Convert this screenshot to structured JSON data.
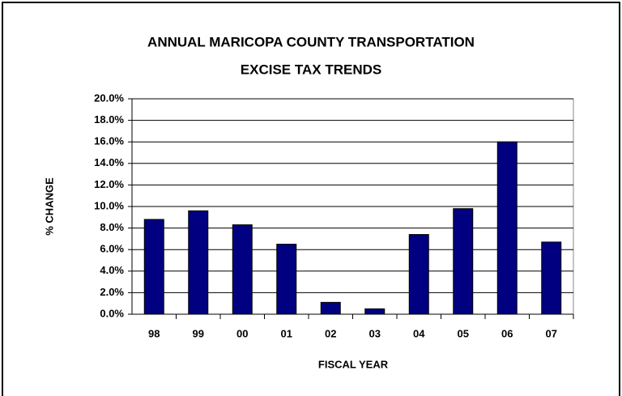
{
  "chart_data": {
    "type": "bar",
    "title": [
      "ANNUAL MARICOPA COUNTY TRANSPORTATION",
      "EXCISE TAX TRENDS"
    ],
    "x_label": "FISCAL YEAR",
    "y_label": "% CHANGE",
    "categories": [
      "98",
      "99",
      "00",
      "01",
      "02",
      "03",
      "04",
      "05",
      "06",
      "07"
    ],
    "values": [
      8.8,
      9.6,
      8.3,
      6.5,
      1.1,
      0.5,
      7.4,
      9.8,
      16.0,
      6.7
    ],
    "color": "#000080",
    "ylim": [
      0,
      20
    ],
    "yticks": [
      {
        "value": 0,
        "label": "0.0%"
      },
      {
        "value": 2,
        "label": "2.0%"
      },
      {
        "value": 4,
        "label": "4.0%"
      },
      {
        "value": 6,
        "label": "6.0%"
      },
      {
        "value": 8,
        "label": "8.0%"
      },
      {
        "value": 10,
        "label": "10.0%"
      },
      {
        "value": 12,
        "label": "12.0%"
      },
      {
        "value": 14,
        "label": "14.0%"
      },
      {
        "value": 16,
        "label": "16.0%"
      },
      {
        "value": 18,
        "label": "18.0%"
      },
      {
        "value": 20,
        "label": "20.0%"
      }
    ],
    "grid": true
  }
}
